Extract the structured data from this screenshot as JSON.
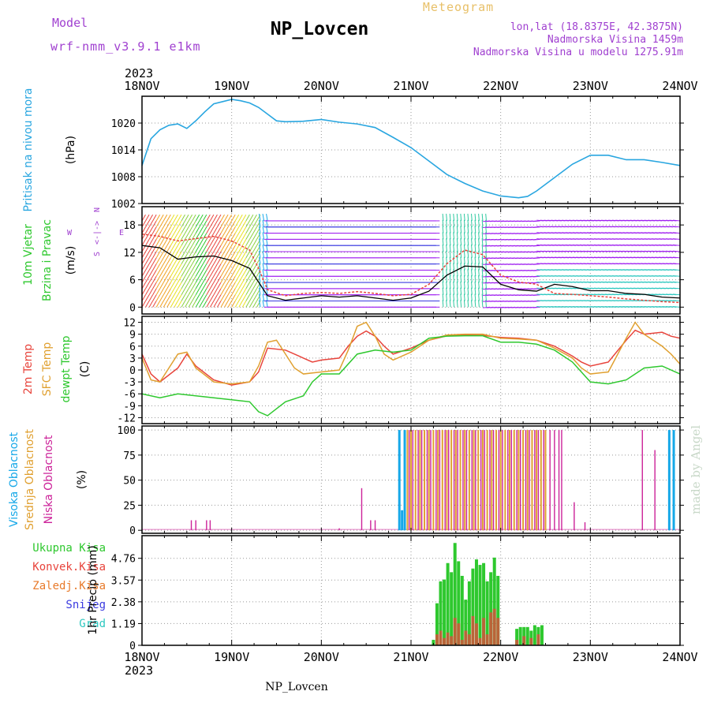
{
  "header": {
    "title": "NP_Lovcen",
    "subtitle": "Meteogram",
    "model_label": "Model",
    "model_value": "wrf-nmm_v3.9.1 e1km",
    "coords": "lon,lat (18.8375E, 42.3875N)",
    "altitude": "Nadmorska Visina 1459m",
    "model_altitude": "Nadmorska Visina u modelu 1275.91m",
    "year_top": "2023",
    "year_bottom": "2023",
    "footer": "NP_Lovcen",
    "credit": "made by Angel"
  },
  "colors": {
    "pressure": "#29a6e0",
    "temp2m": "#e8443c",
    "sfc": "#e0a030",
    "dewpt": "#2ec82e",
    "cloud_high": "#16a8e8",
    "cloud_mid": "#e0a030",
    "cloud_low": "#cc2299",
    "precip_total": "#2ec82e",
    "precip_conv": "#e8443c",
    "purple_text": "#a040d0",
    "credit": "#c8d8c8"
  },
  "chart_data": [
    {
      "type": "line",
      "panel": "pressure",
      "ylabel_lines": [
        "Pritisak na nivou mora",
        "(hPa)"
      ],
      "x_ticks": [
        "18NOV",
        "19NOV",
        "20NOV",
        "21NOV",
        "22NOV",
        "23NOV",
        "24NOV"
      ],
      "xlim_days": [
        18,
        24
      ],
      "ylim": [
        1002,
        1026
      ],
      "yticks": [
        1002,
        1008,
        1014,
        1020
      ],
      "grid": true,
      "series": [
        {
          "name": "",
          "x": [
            18.0,
            18.1,
            18.2,
            18.3,
            18.4,
            18.5,
            18.6,
            18.7,
            18.8,
            18.9,
            19.0,
            19.1,
            19.2,
            19.3,
            19.4,
            19.5,
            19.6,
            19.8,
            20.0,
            20.2,
            20.4,
            20.6,
            20.8,
            21.0,
            21.2,
            21.4,
            21.6,
            21.8,
            22.0,
            22.2,
            22.3,
            22.4,
            22.6,
            22.8,
            23.0,
            23.2,
            23.4,
            23.6,
            23.8,
            24.0
          ],
          "values": [
            1010.5,
            1016.5,
            1018.5,
            1019.5,
            1019.8,
            1018.8,
            1020.5,
            1022.5,
            1024.3,
            1024.8,
            1025.3,
            1025.0,
            1024.5,
            1023.5,
            1022.0,
            1020.5,
            1020.3,
            1020.4,
            1020.8,
            1020.2,
            1019.8,
            1019.0,
            1016.8,
            1014.5,
            1011.5,
            1008.5,
            1006.5,
            1004.8,
            1003.7,
            1003.3,
            1003.6,
            1004.8,
            1007.8,
            1010.8,
            1012.8,
            1012.8,
            1011.8,
            1011.8,
            1011.2,
            1010.5
          ]
        }
      ]
    },
    {
      "type": "line",
      "panel": "wind",
      "ylabel_lines": [
        "10m Vjetar",
        "Brzina i Pravac",
        "(m/s)"
      ],
      "compass": [
        "N",
        "<-|->",
        "W",
        "E",
        "S"
      ],
      "ylim": [
        -1.5,
        22
      ],
      "yticks": [
        0,
        6,
        12,
        18
      ],
      "grid": true,
      "series": [
        {
          "name": "",
          "x": [
            18.0,
            18.2,
            18.4,
            18.6,
            18.8,
            19.0,
            19.2,
            19.3,
            19.4,
            19.6,
            19.8,
            20.0,
            20.2,
            20.4,
            20.6,
            20.8,
            21.0,
            21.2,
            21.4,
            21.6,
            21.8,
            22.0,
            22.2,
            22.4,
            22.6,
            22.8,
            23.0,
            23.2,
            23.4,
            23.6,
            23.8,
            24.0
          ],
          "values": [
            13.5,
            13.0,
            10.5,
            11.0,
            11.2,
            10.2,
            8.5,
            5.5,
            2.5,
            1.5,
            2.0,
            2.5,
            2.2,
            2.5,
            2.0,
            1.5,
            2.0,
            3.5,
            7.0,
            9.0,
            8.8,
            5.0,
            3.8,
            3.5,
            5.0,
            4.5,
            3.6,
            3.6,
            3.0,
            2.8,
            2.2,
            2.0
          ]
        },
        {
          "name": "",
          "x": [
            18.0,
            18.2,
            18.4,
            18.6,
            18.8,
            19.0,
            19.2,
            19.3,
            19.4,
            19.6,
            19.8,
            20.0,
            20.2,
            20.4,
            20.6,
            20.8,
            21.0,
            21.2,
            21.4,
            21.6,
            21.8,
            22.0,
            22.2,
            22.4,
            22.6,
            22.8,
            23.0,
            23.2,
            23.4,
            23.6,
            23.8,
            24.0
          ],
          "values": [
            16.0,
            15.5,
            14.5,
            15.0,
            15.5,
            14.5,
            12.5,
            8.5,
            3.8,
            2.5,
            3.0,
            3.2,
            3.0,
            3.4,
            3.0,
            2.5,
            2.8,
            5.0,
            9.5,
            12.5,
            11.5,
            7.0,
            5.5,
            5.0,
            3.0,
            2.8,
            2.5,
            2.2,
            1.8,
            1.5,
            1.2,
            1.0
          ]
        }
      ]
    },
    {
      "type": "line",
      "panel": "temperature",
      "ylabel_lines": [
        "2m Temp",
        "SFC Temp",
        "dewpt Temp",
        "(C)"
      ],
      "ylim": [
        -13.5,
        13.5
      ],
      "yticks": [
        -12,
        -9,
        -6,
        -3,
        0,
        3,
        6,
        9,
        12
      ],
      "grid": true,
      "series": [
        {
          "name": "2m Temp",
          "x": [
            18.0,
            18.1,
            18.2,
            18.4,
            18.5,
            18.6,
            18.8,
            19.0,
            19.2,
            19.3,
            19.4,
            19.6,
            19.8,
            19.9,
            20.0,
            20.2,
            20.3,
            20.4,
            20.5,
            20.6,
            20.7,
            20.8,
            21.0,
            21.2,
            21.4,
            21.6,
            21.8,
            22.0,
            22.2,
            22.4,
            22.6,
            22.8,
            22.9,
            23.0,
            23.2,
            23.4,
            23.5,
            23.6,
            23.8,
            23.9,
            24.0
          ],
          "values": [
            4.0,
            -1.0,
            -3.0,
            0.5,
            4.0,
            1.0,
            -2.5,
            -3.8,
            -3.0,
            -0.5,
            5.5,
            5.0,
            3.0,
            2.0,
            2.5,
            3.0,
            6.0,
            8.5,
            9.8,
            8.5,
            6.0,
            4.0,
            5.5,
            7.5,
            8.6,
            8.8,
            8.7,
            8.2,
            8.0,
            7.5,
            6.0,
            3.5,
            2.0,
            1.0,
            2.0,
            7.5,
            10.0,
            9.0,
            9.5,
            8.5,
            8.0
          ]
        },
        {
          "name": "SFC Temp",
          "x": [
            18.0,
            18.1,
            18.2,
            18.3,
            18.4,
            18.5,
            18.6,
            18.8,
            19.0,
            19.2,
            19.3,
            19.4,
            19.5,
            19.6,
            19.7,
            19.8,
            20.0,
            20.2,
            20.3,
            20.4,
            20.5,
            20.6,
            20.7,
            20.8,
            21.0,
            21.2,
            21.4,
            21.6,
            21.8,
            22.0,
            22.2,
            22.4,
            22.6,
            22.8,
            22.9,
            23.0,
            23.2,
            23.4,
            23.5,
            23.6,
            23.8,
            23.9,
            24.0
          ],
          "values": [
            3.0,
            -2.5,
            -3.0,
            0.5,
            4.0,
            4.5,
            0.5,
            -3.0,
            -3.5,
            -3.0,
            1.0,
            7.0,
            7.5,
            4.0,
            0.5,
            -1.0,
            -0.5,
            0.0,
            5.0,
            11.0,
            12.0,
            8.5,
            4.0,
            2.5,
            4.5,
            7.5,
            8.8,
            9.0,
            9.0,
            8.0,
            7.8,
            7.5,
            5.5,
            3.0,
            0.5,
            -1.0,
            -0.5,
            8.0,
            12.0,
            9.0,
            6.0,
            4.0,
            1.5
          ]
        },
        {
          "name": "dewpt Temp",
          "x": [
            18.0,
            18.2,
            18.4,
            18.6,
            18.8,
            19.0,
            19.2,
            19.3,
            19.4,
            19.6,
            19.8,
            19.9,
            20.0,
            20.2,
            20.4,
            20.6,
            20.8,
            21.0,
            21.2,
            21.4,
            21.6,
            21.8,
            22.0,
            22.2,
            22.4,
            22.6,
            22.8,
            23.0,
            23.2,
            23.4,
            23.6,
            23.8,
            24.0
          ],
          "values": [
            -6.0,
            -7.0,
            -6.0,
            -6.5,
            -7.0,
            -7.5,
            -8.0,
            -10.5,
            -11.5,
            -8.0,
            -6.5,
            -3.0,
            -1.0,
            -1.0,
            4.0,
            5.0,
            4.5,
            5.0,
            8.0,
            8.5,
            8.6,
            8.6,
            7.0,
            7.0,
            6.5,
            5.0,
            2.0,
            -3.0,
            -3.5,
            -2.5,
            0.5,
            1.0,
            -1.0
          ]
        }
      ]
    },
    {
      "type": "bar",
      "panel": "clouds",
      "ylabel_lines": [
        "Visoka Oblacnost",
        "Srednja Oblacnost",
        "Niska Oblacnost",
        "(%)"
      ],
      "ylim": [
        -3,
        104
      ],
      "yticks": [
        0,
        25,
        50,
        75,
        100
      ],
      "grid": true,
      "series": [
        {
          "name": "Visoka Oblacnost",
          "x": [
            20.87,
            20.9,
            20.93,
            23.88,
            23.93
          ],
          "values": [
            100,
            20,
            100,
            100,
            100
          ]
        },
        {
          "name": "Srednja Oblacnost",
          "x": [
            20.96,
            21.0,
            21.05,
            21.1,
            21.15,
            21.2,
            21.25,
            21.3,
            21.35,
            21.4,
            21.45,
            21.5,
            21.55,
            21.6,
            21.65,
            21.7,
            21.75,
            21.8,
            21.85,
            21.9,
            21.95,
            22.0,
            22.05,
            22.1,
            22.15,
            22.2,
            22.25,
            22.3,
            22.35,
            22.4,
            22.45,
            22.5
          ],
          "values": [
            100,
            100,
            100,
            100,
            100,
            100,
            100,
            100,
            100,
            100,
            100,
            100,
            100,
            100,
            100,
            100,
            100,
            100,
            100,
            100,
            100,
            100,
            100,
            100,
            100,
            100,
            100,
            100,
            100,
            100,
            100,
            100
          ]
        },
        {
          "name": "Niska Oblacnost",
          "x": [
            18.55,
            18.6,
            18.72,
            18.76,
            20.2,
            20.45,
            20.55,
            20.6,
            20.98,
            21.02,
            21.08,
            21.12,
            21.18,
            21.22,
            21.28,
            21.32,
            21.38,
            21.42,
            21.48,
            21.52,
            21.58,
            21.62,
            21.68,
            21.72,
            21.78,
            21.82,
            21.88,
            21.92,
            21.98,
            22.02,
            22.08,
            22.12,
            22.18,
            22.22,
            22.28,
            22.32,
            22.38,
            22.42,
            22.48,
            22.55,
            22.6,
            22.65,
            22.68,
            22.82,
            22.94,
            23.58,
            23.72
          ],
          "values": [
            10,
            10,
            10,
            10,
            2,
            42,
            10,
            10,
            100,
            100,
            100,
            100,
            100,
            100,
            100,
            100,
            100,
            100,
            100,
            100,
            100,
            100,
            100,
            100,
            100,
            100,
            100,
            100,
            100,
            100,
            100,
            100,
            100,
            100,
            100,
            100,
            100,
            100,
            100,
            100,
            100,
            100,
            100,
            28,
            8,
            100,
            80
          ]
        }
      ]
    },
    {
      "type": "bar",
      "panel": "precip",
      "ylabel_lines": [
        "1hr Precip (mm)"
      ],
      "legend": [
        "Ukupna Kisa",
        "Konvek.Kisa",
        "Zaledj.Kisa",
        "Snijeg",
        "Grad"
      ],
      "legend_colors": [
        "#2ec82e",
        "#e8443c",
        "#e87a2a",
        "#3a3ae0",
        "#2ec8c0"
      ],
      "x_ticks": [
        "18NOV",
        "19NOV",
        "20NOV",
        "21NOV",
        "22NOV",
        "23NOV",
        "24NOV"
      ],
      "ylim": [
        0,
        6
      ],
      "yticks": [
        0,
        1.19,
        2.38,
        3.57,
        4.76
      ],
      "grid": true,
      "series": [
        {
          "name": "Ukupna Kisa",
          "x": [
            21.25,
            21.29,
            21.33,
            21.37,
            21.41,
            21.45,
            21.49,
            21.53,
            21.57,
            21.61,
            21.65,
            21.69,
            21.73,
            21.77,
            21.81,
            21.85,
            21.89,
            21.93,
            21.97,
            22.18,
            22.22,
            22.26,
            22.3,
            22.34,
            22.38,
            22.42,
            22.46
          ],
          "values": [
            0.3,
            2.3,
            3.5,
            3.6,
            4.5,
            4.0,
            5.6,
            4.6,
            3.8,
            2.5,
            3.5,
            4.2,
            4.7,
            4.4,
            4.5,
            3.5,
            4.0,
            4.8,
            3.8,
            0.9,
            1.0,
            1.0,
            1.0,
            0.8,
            1.1,
            1.0,
            1.1
          ]
        },
        {
          "name": "Konvek.Kisa",
          "x": [
            21.29,
            21.33,
            21.37,
            21.41,
            21.45,
            21.49,
            21.53,
            21.57,
            21.61,
            21.65,
            21.69,
            21.73,
            21.77,
            21.81,
            21.85,
            21.89,
            21.93,
            21.97,
            22.18,
            22.26,
            22.34,
            22.42
          ],
          "values": [
            0.6,
            0.8,
            0.4,
            0.7,
            0.5,
            1.5,
            1.2,
            0.3,
            0.8,
            0.6,
            1.6,
            1.2,
            0.4,
            1.5,
            0.6,
            1.8,
            2.0,
            1.5,
            0.3,
            0.5,
            0.4,
            0.6
          ]
        }
      ]
    }
  ]
}
